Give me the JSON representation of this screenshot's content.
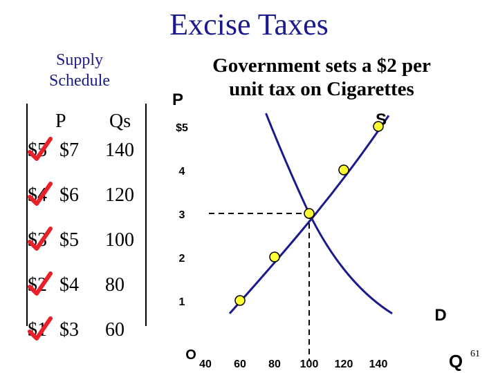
{
  "title": "Excise Taxes",
  "schedule": {
    "label_line1": "Supply",
    "label_line2": "Schedule",
    "header_p": "P",
    "header_qs": "Qs",
    "rows": [
      {
        "old_price": "$5",
        "new_price": "$7",
        "qs": "140"
      },
      {
        "old_price": "$4",
        "new_price": "$6",
        "qs": "120"
      },
      {
        "old_price": "$3",
        "new_price": "$5",
        "qs": "100"
      },
      {
        "old_price": "$2",
        "new_price": "$4",
        "qs": "80"
      },
      {
        "old_price": "$1",
        "new_price": "$3",
        "qs": "60"
      }
    ],
    "check_color": "#e8202a"
  },
  "annotation": {
    "line1": "Government sets a $2 per",
    "line2": "unit tax on Cigarettes"
  },
  "page_number": "61",
  "chart_data": {
    "type": "line",
    "ylabel": "P",
    "xlabel": "Q",
    "origin_label": "O",
    "y_ticks": [
      {
        "value": 5,
        "label": "$5"
      },
      {
        "value": 4,
        "label": "4"
      },
      {
        "value": 3,
        "label": "3"
      },
      {
        "value": 2,
        "label": "2"
      },
      {
        "value": 1,
        "label": "1"
      }
    ],
    "x_ticks": [
      {
        "value": 40,
        "label": "40"
      },
      {
        "value": 60,
        "label": "60"
      },
      {
        "value": 80,
        "label": "80"
      },
      {
        "value": 100,
        "label": "100"
      },
      {
        "value": 120,
        "label": "120"
      },
      {
        "value": 140,
        "label": "140"
      }
    ],
    "xlim": [
      30,
      150
    ],
    "ylim": [
      0,
      5.3
    ],
    "series": [
      {
        "name": "S",
        "color": "#1a1a8c",
        "points": [
          {
            "x": 60,
            "y": 1
          },
          {
            "x": 80,
            "y": 2
          },
          {
            "x": 100,
            "y": 3
          },
          {
            "x": 120,
            "y": 4
          },
          {
            "x": 140,
            "y": 5
          }
        ]
      },
      {
        "name": "D",
        "color": "#1a1a8c",
        "points": [
          {
            "x": 75,
            "y": 5.3
          },
          {
            "x": 100,
            "y": 3
          },
          {
            "x": 120,
            "y": 1.8
          },
          {
            "x": 148,
            "y": 0.7
          }
        ]
      }
    ],
    "markers": [
      {
        "x": 60,
        "y": 1
      },
      {
        "x": 80,
        "y": 2
      },
      {
        "x": 100,
        "y": 3
      },
      {
        "x": 120,
        "y": 4
      },
      {
        "x": 140,
        "y": 5
      }
    ],
    "marker_fill": "#ffff33",
    "equilibrium": {
      "x": 100,
      "y": 3
    },
    "grid": false
  }
}
